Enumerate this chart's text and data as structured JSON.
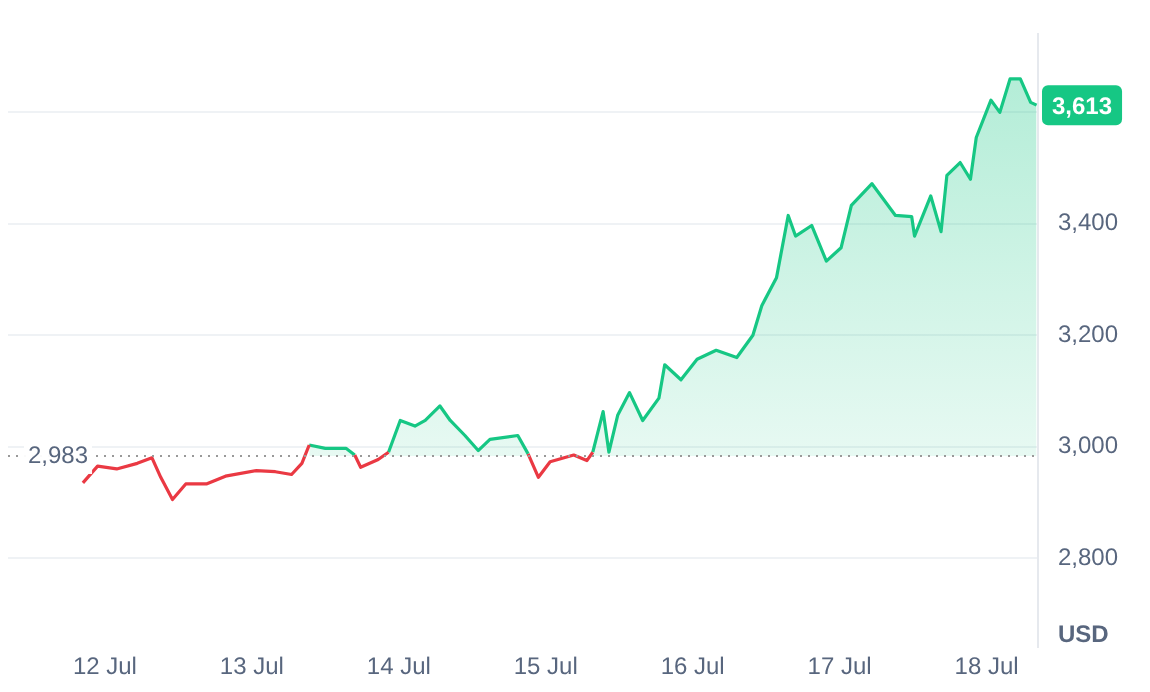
{
  "chart_data": {
    "type": "area",
    "ylabel": "USD",
    "x": [
      "--07-11T20:24",
      "--07-11T22:48",
      "--07-12T01:55",
      "--07-12T05:17",
      "--07-12T07:41",
      "--07-12T09:07",
      "--07-12T11:02",
      "--07-12T13:12",
      "--07-12T16:34",
      "--07-12T19:41",
      "--07-13T00:43",
      "--07-13T03:50",
      "--07-13T06:29",
      "--07-13T08:10",
      "--07-13T09:22",
      "--07-13T12:00",
      "--07-13T15:22",
      "--07-13T16:48",
      "--07-13T17:46",
      "--07-13T20:38",
      "--07-13T22:19",
      "--07-14T00:14",
      "--07-14T02:38",
      "--07-14T04:19",
      "--07-14T06:43",
      "--07-14T08:24",
      "--07-14T10:48",
      "--07-14T12:58",
      "--07-14T14:53",
      "--07-14T19:26",
      "--07-14T21:07",
      "--07-14T22:48",
      "--07-15T00:43",
      "--07-15T04:34",
      "--07-15T06:43",
      "--07-15T07:41",
      "--07-15T09:22",
      "--07-15T10:19",
      "--07-15T11:46",
      "--07-15T13:41",
      "--07-15T15:50",
      "--07-15T18:29",
      "--07-15T19:26",
      "--07-15T22:05",
      "--07-16T00:43",
      "--07-16T03:50",
      "--07-16T07:12",
      "--07-16T09:50",
      "--07-16T11:17",
      "--07-16T13:41",
      "--07-16T15:36",
      "--07-16T16:48",
      "--07-16T19:26",
      "--07-16T21:50",
      "--07-17T00:14",
      "--07-17T01:55",
      "--07-17T05:17",
      "--07-17T09:07",
      "--07-17T11:46",
      "--07-17T12:14",
      "--07-17T14:53",
      "--07-17T16:34",
      "--07-17T17:31",
      "--07-17T19:41",
      "--07-17T21:22",
      "--07-17T22:19",
      "--07-18T00:43",
      "--07-18T02:10",
      "--07-18T03:50",
      "--07-18T05:31",
      "--07-18T07:12",
      "--07-18T08:10"
    ],
    "series": [
      {
        "color": "#16c784",
        "values": [
          null,
          null,
          null,
          null,
          null,
          null,
          null,
          null,
          null,
          null,
          null,
          null,
          null,
          null,
          3003,
          2997,
          2997,
          2985,
          null,
          null,
          2990,
          3047,
          3037,
          3047,
          3073,
          3047,
          3020,
          2993,
          3013,
          3020,
          2987,
          null,
          null,
          null,
          null,
          2990,
          3063,
          2990,
          3057,
          3097,
          3047,
          3087,
          3147,
          3120,
          3157,
          3173,
          3160,
          3200,
          3253,
          3303,
          3415,
          3378,
          3397,
          3333,
          3357,
          3433,
          3472,
          3415,
          3413,
          3378,
          3450,
          3386,
          3487,
          3510,
          3480,
          3555,
          3622,
          3600,
          3660,
          3660,
          3618,
          3613
        ]
      },
      {
        "type": "line",
        "color": "#ea3943",
        "values": [
          2935,
          2965,
          2960,
          2970,
          2980,
          2945,
          2905,
          2933,
          2933,
          2947,
          2957,
          2955,
          2950,
          2970,
          3003,
          null,
          null,
          2985,
          2963,
          2977,
          2990,
          null,
          null,
          null,
          null,
          null,
          null,
          null,
          null,
          null,
          2987,
          2945,
          2973,
          2985,
          2975,
          2990,
          null,
          null,
          null,
          null,
          null,
          null,
          null,
          null,
          null,
          null,
          null,
          null,
          null,
          null,
          null,
          null,
          null,
          null,
          null,
          null,
          null,
          null,
          null,
          null,
          null,
          null,
          null,
          null,
          null,
          null,
          null,
          null,
          null,
          null,
          null,
          null
        ]
      }
    ],
    "xlim": [
      "--07-11T08:10",
      "--07-18T08:24"
    ],
    "xticks": [
      {
        "value": "--07-12",
        "label": "12 Jul"
      },
      {
        "value": "--07-13",
        "label": "13 Jul"
      },
      {
        "value": "--07-14",
        "label": "14 Jul"
      },
      {
        "value": "--07-15",
        "label": "15 Jul"
      },
      {
        "value": "--07-16",
        "label": "16 Jul"
      },
      {
        "value": "--07-17",
        "label": "17 Jul"
      },
      {
        "value": "--07-18",
        "label": "18 Jul"
      }
    ],
    "ylim": [
      2640,
      3740
    ],
    "yticks": [
      {
        "value": 2800,
        "label": "2,800"
      },
      {
        "value": 3000,
        "label": "3,000"
      },
      {
        "value": 3200,
        "label": "3,200"
      },
      {
        "value": 3400,
        "label": "3,400"
      },
      {
        "value": 3600,
        "label": null
      }
    ],
    "grid": "y",
    "marker": "none",
    "line_style": "solid",
    "ref_lines": [
      {
        "axis": "y",
        "value": 2983,
        "label": "2,983",
        "color": "#999999",
        "line_style": "dotted"
      }
    ],
    "annotations": [
      {
        "text": "3,613",
        "x": "--07-18T08:10",
        "y": 3613
      }
    ]
  }
}
